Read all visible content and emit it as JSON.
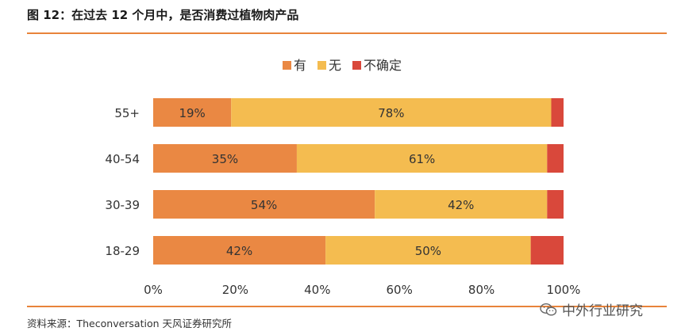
{
  "header": {
    "title": "图 12：在过去 12 个月中，是否消费过植物肉产品"
  },
  "footer": {
    "source": "资料来源：Theconversation 天风证券研究所",
    "watermark": "中外行业研究"
  },
  "colors": {
    "accent_rule": "#e8833a"
  },
  "chart_data": {
    "type": "bar",
    "orientation": "horizontal",
    "stacked": true,
    "percent": true,
    "categories": [
      "55+",
      "40-54",
      "30-39",
      "18-29"
    ],
    "series": [
      {
        "name": "有",
        "color": "#ea8843",
        "values": [
          19,
          35,
          54,
          42
        ]
      },
      {
        "name": "无",
        "color": "#f4bc50",
        "values": [
          78,
          61,
          42,
          50
        ]
      },
      {
        "name": "不确定",
        "color": "#d9483b",
        "values": [
          3,
          4,
          4,
          8
        ]
      }
    ],
    "data_labels": [
      [
        "19%",
        "35%",
        "54%",
        "42%"
      ],
      [
        "78%",
        "61%",
        "42%",
        "50%"
      ],
      [
        "",
        "",
        "",
        ""
      ]
    ],
    "xlim": [
      0,
      100
    ],
    "xticks": [
      "0%",
      "20%",
      "40%",
      "60%",
      "80%",
      "100%"
    ],
    "legend_position": "top-center",
    "grid": false
  }
}
